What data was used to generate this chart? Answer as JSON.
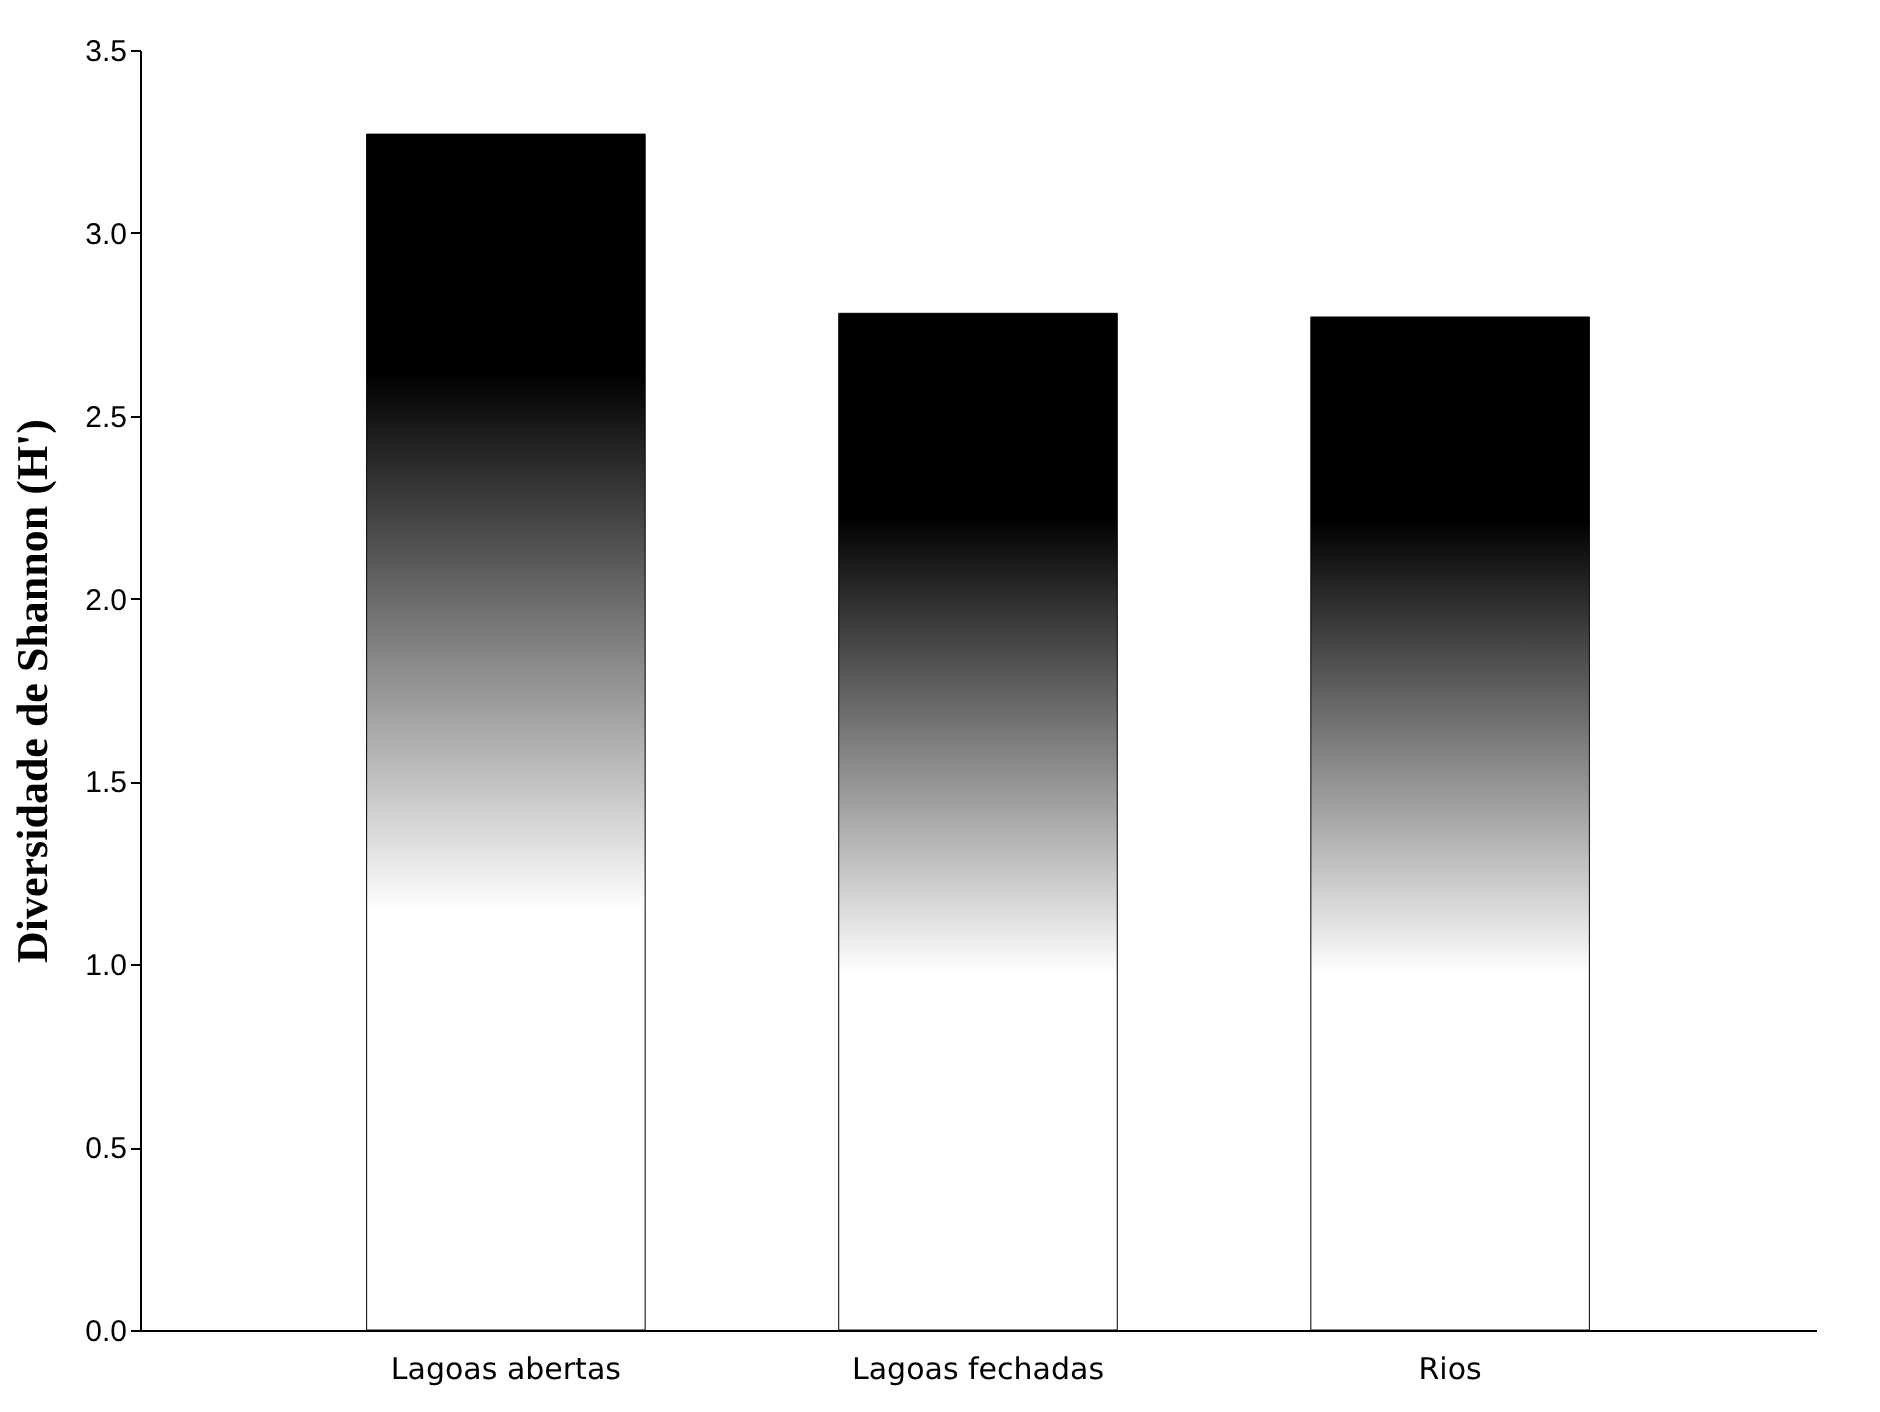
{
  "chart_data": {
    "type": "bar",
    "ylabel": "Diversidade de Shannon (H')",
    "categories": [
      "Lagoas abertas",
      "Lagoas fechadas",
      "Rios"
    ],
    "series": [
      {
        "color": "#000000",
        "values": [
          3.27,
          2.78,
          2.77
        ]
      }
    ],
    "ylim": [
      0,
      3.5
    ],
    "yticks": [
      {
        "value": 0,
        "label": "0.0"
      },
      0.5,
      {
        "value": 1,
        "label": "1.0"
      },
      1.5,
      {
        "value": 2,
        "label": "2.0"
      },
      2.5,
      {
        "value": 3,
        "label": "3.0"
      },
      3.5
    ],
    "grid": false
  }
}
